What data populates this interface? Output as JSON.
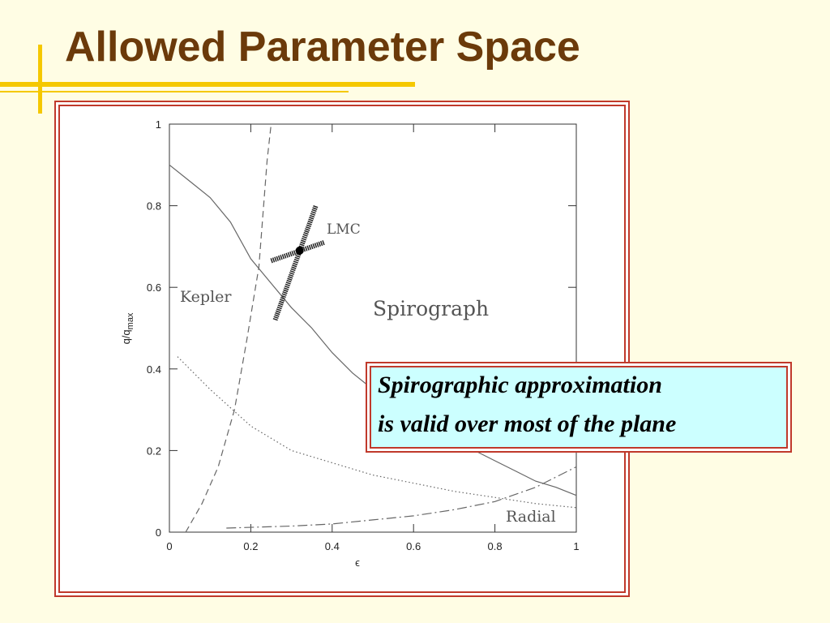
{
  "slide": {
    "title": "Allowed Parameter Space"
  },
  "callout": {
    "lines": [
      "Spirographic approximation",
      "is valid over most of the plane"
    ]
  },
  "chart_data": {
    "type": "line",
    "xlabel": "ϵ",
    "ylabel": "q/q",
    "ylabel_subscript": "max",
    "xlim": [
      0,
      1
    ],
    "ylim": [
      0,
      1
    ],
    "xticks": [
      0,
      0.2,
      0.4,
      0.6,
      0.8,
      1
    ],
    "yticks": [
      0,
      0.2,
      0.4,
      0.6,
      0.8,
      1
    ],
    "annotations": [
      "Kepler",
      "LMC",
      "Spirograph",
      "Radial"
    ],
    "series": [
      {
        "color": "#666666",
        "style": "solid",
        "x": [
          0,
          0.05,
          0.1,
          0.15,
          0.2,
          0.25,
          0.3,
          0.35,
          0.4,
          0.45,
          0.5,
          0.55,
          0.6,
          0.65,
          0.7,
          0.75,
          0.8,
          0.85,
          0.9,
          0.95,
          1
        ],
        "values": [
          0.9,
          0.86,
          0.82,
          0.76,
          0.67,
          0.61,
          0.55,
          0.5,
          0.44,
          0.39,
          0.35,
          0.31,
          0.28,
          0.25,
          0.225,
          0.2,
          0.175,
          0.15,
          0.125,
          0.11,
          0.09
        ]
      },
      {
        "color": "#666666",
        "style": "dotted",
        "x": [
          0.02,
          0.1,
          0.2,
          0.3,
          0.4,
          0.5,
          0.6,
          0.7,
          0.8,
          0.9,
          1
        ],
        "values": [
          0.43,
          0.35,
          0.26,
          0.2,
          0.17,
          0.14,
          0.12,
          0.1,
          0.085,
          0.07,
          0.06
        ]
      },
      {
        "color": "#666666",
        "style": "dashed",
        "x": [
          0.04,
          0.08,
          0.12,
          0.16,
          0.19,
          0.22,
          0.24,
          0.25
        ],
        "values": [
          0,
          0.07,
          0.16,
          0.3,
          0.47,
          0.65,
          0.91,
          1
        ]
      },
      {
        "color": "#666666",
        "style": "dashdot",
        "x": [
          0.14,
          0.3,
          0.4,
          0.5,
          0.6,
          0.7,
          0.8,
          0.9,
          1
        ],
        "values": [
          0.01,
          0.015,
          0.02,
          0.03,
          0.04,
          0.055,
          0.075,
          0.11,
          0.16
        ]
      },
      {
        "color": "#222222",
        "style": "hatched",
        "x": [
          0.25,
          0.38
        ],
        "values": [
          0.665,
          0.71
        ]
      },
      {
        "color": "#222222",
        "style": "hatched",
        "x": [
          0.26,
          0.36
        ],
        "values": [
          0.52,
          0.8
        ]
      },
      {
        "color": "#000000",
        "style": "none",
        "marker": "circle",
        "x": [
          0.32
        ],
        "values": [
          0.69
        ]
      }
    ]
  }
}
